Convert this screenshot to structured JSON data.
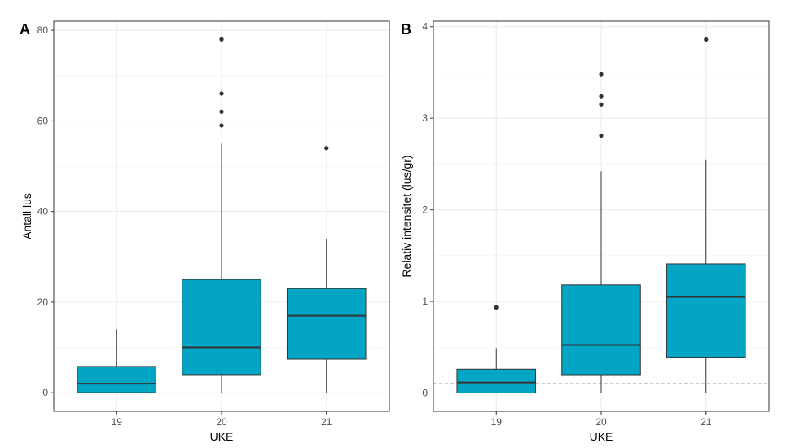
{
  "chart_data": [
    {
      "type": "box",
      "tag": "A",
      "xlabel": "UKE",
      "ylabel": "Antall lus",
      "categories": [
        "19",
        "20",
        "21"
      ],
      "yticks": [
        0,
        20,
        40,
        60,
        80
      ],
      "ylim": [
        -4.1,
        82
      ],
      "grid": true,
      "fill": "#02a6c4",
      "boxes": [
        {
          "min": 0,
          "q1": 0,
          "median": 2,
          "q3": 5.8,
          "max": 14,
          "outliers": []
        },
        {
          "min": 0,
          "q1": 4,
          "median": 10,
          "q3": 25,
          "max": 55,
          "outliers": [
            59,
            62,
            66,
            78
          ]
        },
        {
          "min": 0,
          "q1": 7.4,
          "median": 17,
          "q3": 23,
          "max": 34,
          "outliers": [
            54
          ]
        }
      ]
    },
    {
      "type": "box",
      "tag": "B",
      "xlabel": "UKE",
      "ylabel": "Relativ intensitet (lus/gr)",
      "categories": [
        "19",
        "20",
        "21"
      ],
      "yticks": [
        0,
        1,
        2,
        3,
        4
      ],
      "ylim": [
        -0.2,
        4.06
      ],
      "grid": true,
      "fill": "#02a6c4",
      "reference_line": 0.1,
      "boxes": [
        {
          "min": 0,
          "q1": 0,
          "median": 0.115,
          "q3": 0.26,
          "max": 0.49,
          "outliers": [
            0.935
          ]
        },
        {
          "min": 0,
          "q1": 0.2,
          "median": 0.525,
          "q3": 1.18,
          "max": 2.42,
          "outliers": [
            2.81,
            3.15,
            3.24,
            3.48
          ]
        },
        {
          "min": 0,
          "q1": 0.39,
          "median": 1.05,
          "q3": 1.41,
          "max": 2.55,
          "outliers": [
            3.86
          ]
        }
      ]
    }
  ]
}
